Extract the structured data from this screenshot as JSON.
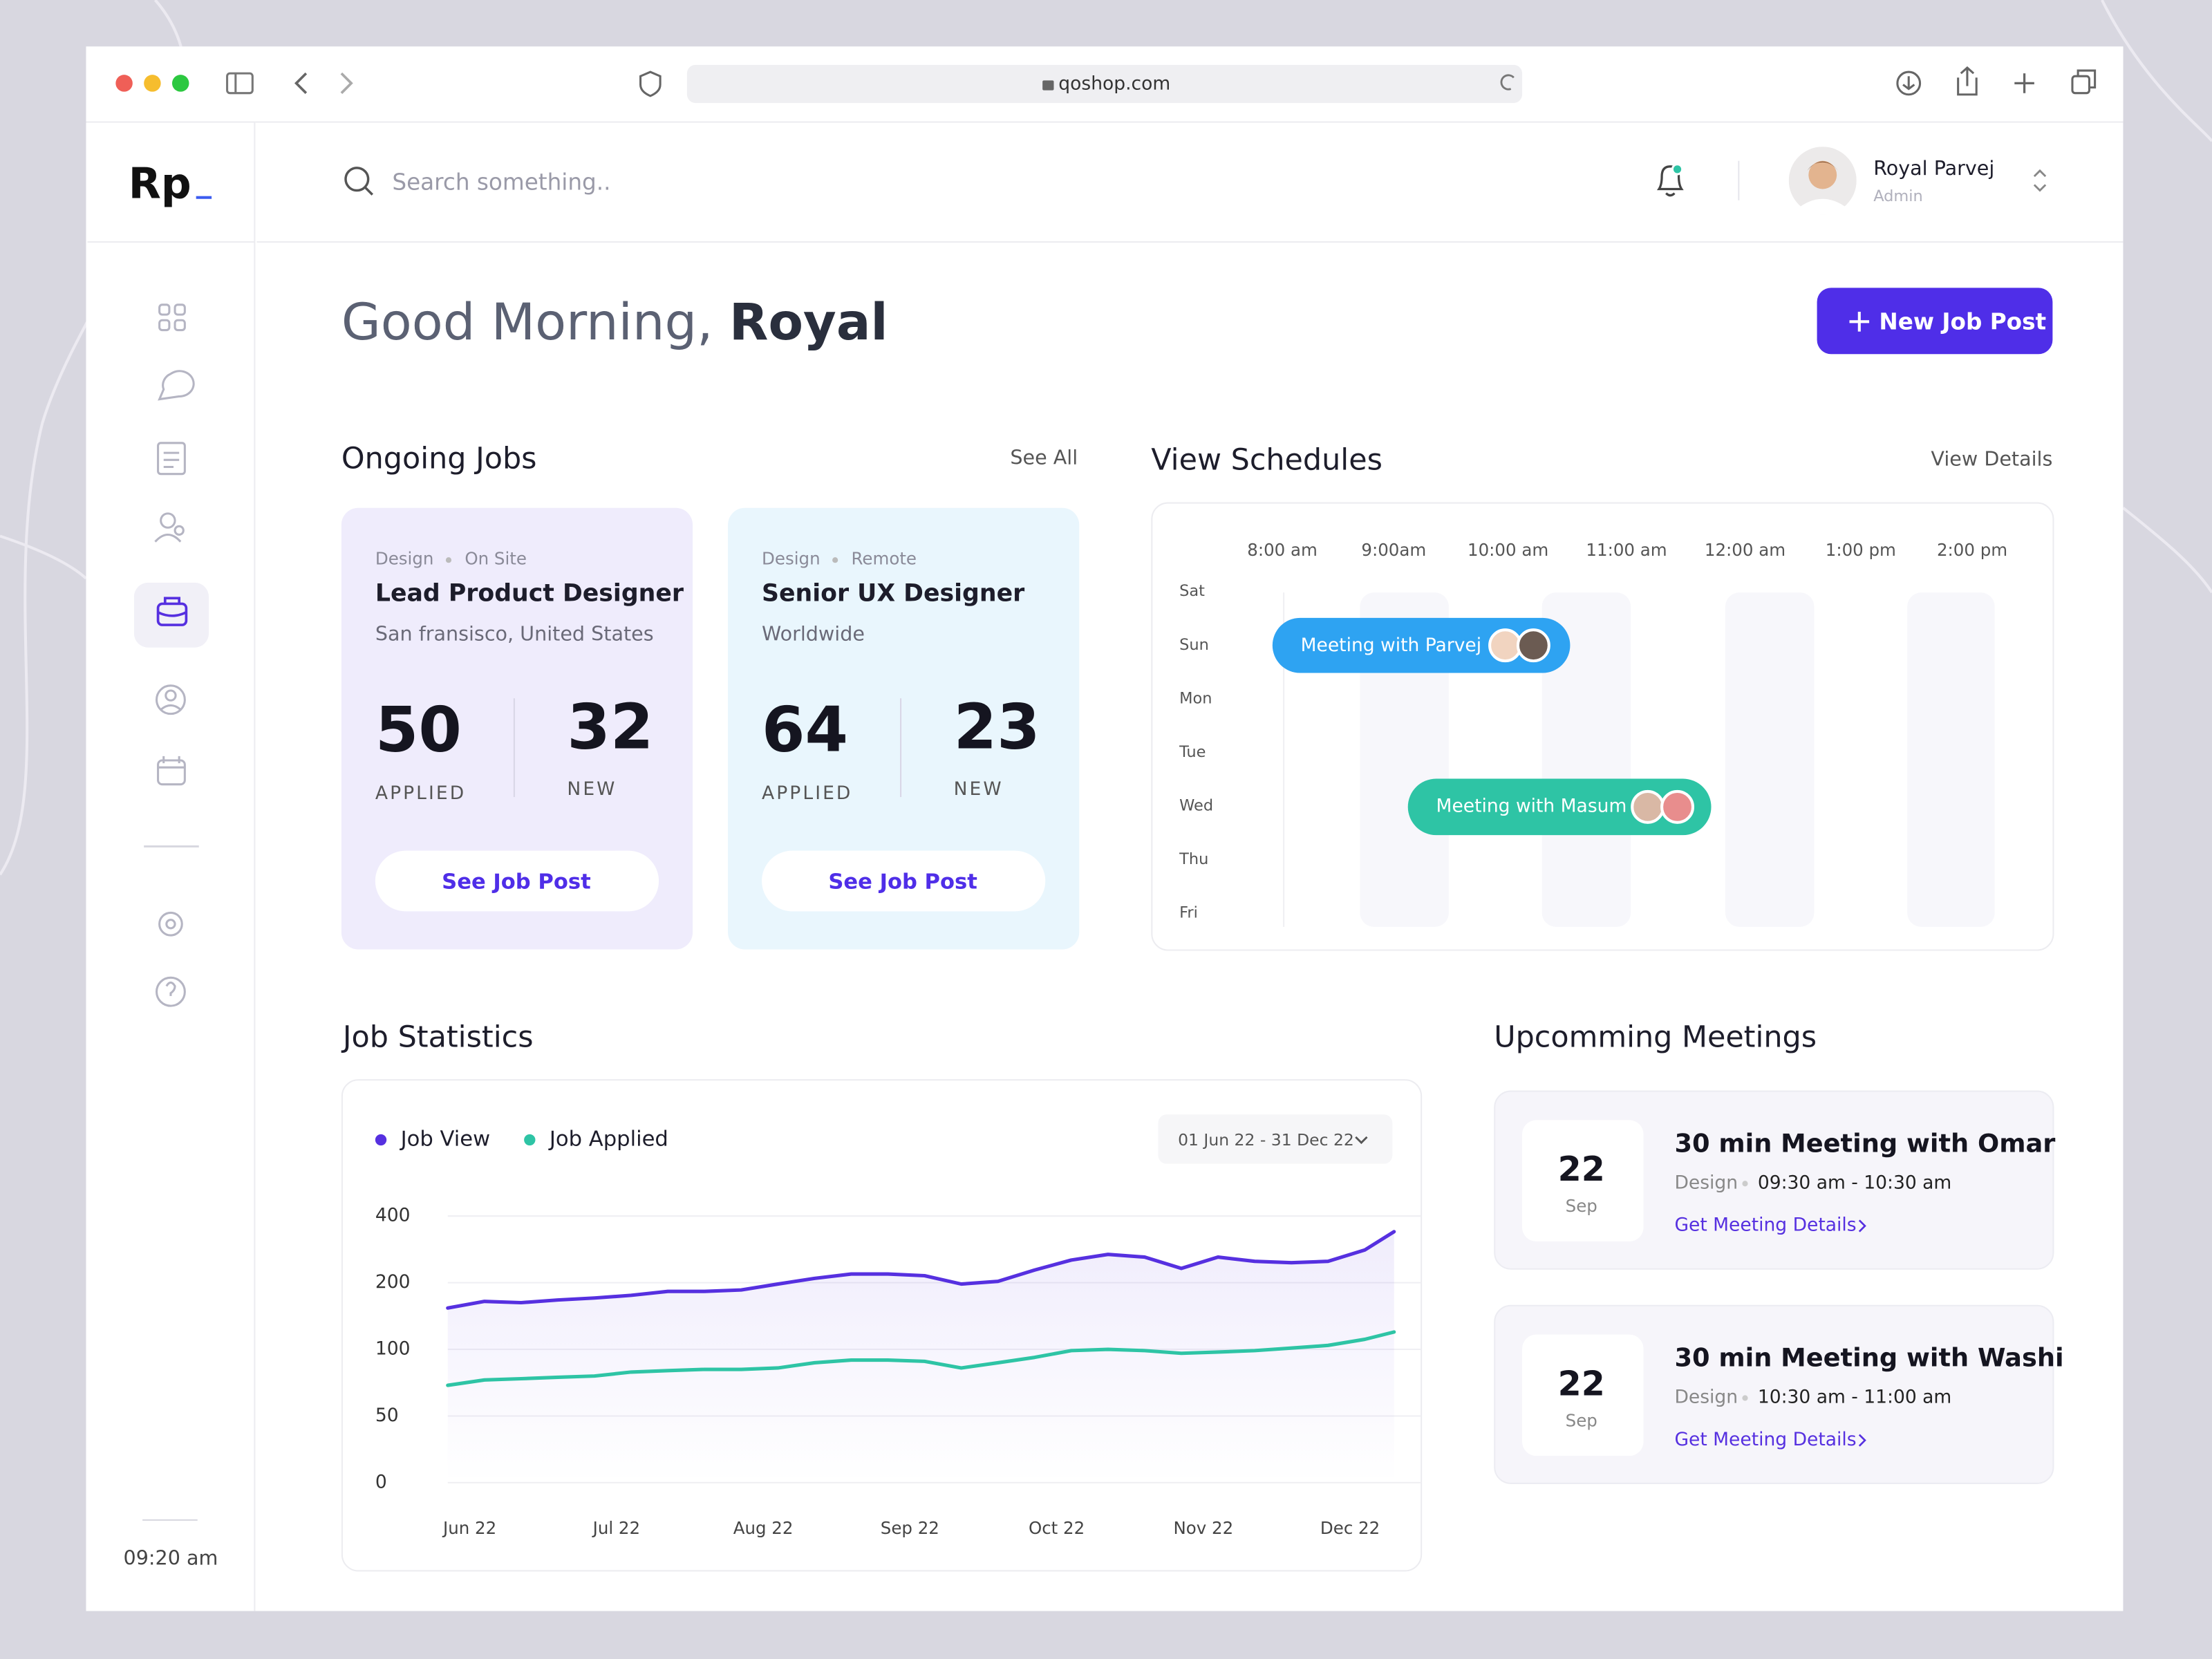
{
  "browser": {
    "url": "qoshop.com"
  },
  "logo": "Rp",
  "search_placeholder": "Search something..",
  "user": {
    "name": "Royal Parvej",
    "role": "Admin"
  },
  "greeting": {
    "text": "Good Morning,",
    "name": "Royal"
  },
  "new_job_button": "New Job Post",
  "ongoing_jobs": {
    "title": "Ongoing Jobs",
    "see_all": "See All",
    "jobs": [
      {
        "category": "Design",
        "mode": "On Site",
        "title": "Lead Product Designer",
        "location": "San fransisco, United States",
        "applied": 50,
        "applied_label": "APPLIED",
        "new": 32,
        "new_label": "NEW",
        "button": "See Job Post"
      },
      {
        "category": "Design",
        "mode": "Remote",
        "title": "Senior UX Designer",
        "location": "Worldwide",
        "applied": 64,
        "applied_label": "APPLIED",
        "new": 23,
        "new_label": "NEW",
        "button": "See Job Post"
      }
    ]
  },
  "schedule": {
    "title": "View Schedules",
    "link": "View Details",
    "times": [
      "8:00 am",
      "9:00am",
      "10:00 am",
      "11:00 am",
      "12:00 am",
      "1:00 pm",
      "2:00 pm"
    ],
    "days": [
      "Sat",
      "Sun",
      "Mon",
      "Tue",
      "Wed",
      "Thu",
      "Fri"
    ],
    "meetings": [
      {
        "label": "Meeting with Parvej"
      },
      {
        "label": "Meeting with Masum"
      }
    ]
  },
  "statistics_range": "01 Jun 22 - 31 Dec 22",
  "chart_data": {
    "type": "line",
    "title": "Job Statistics",
    "x": [
      -0.15,
      0.1,
      0.35,
      0.6,
      0.85,
      1.1,
      1.35,
      1.6,
      1.85,
      2.1,
      2.35,
      2.6,
      2.85,
      3.1,
      3.35,
      3.6,
      3.85,
      4.1,
      4.35,
      4.6,
      4.85,
      5.1,
      5.35,
      5.6,
      5.85,
      6.1,
      6.3
    ],
    "xlim": [
      -0.15,
      6.3
    ],
    "xticks": [
      {
        "value": 0,
        "label": "Jun 22"
      },
      {
        "value": 1,
        "label": "Jul 22"
      },
      {
        "value": 2,
        "label": "Aug 22"
      },
      {
        "value": 3,
        "label": "Sep 22"
      },
      {
        "value": 4,
        "label": "Oct 22"
      },
      {
        "value": 5,
        "label": "Nov 22"
      },
      {
        "value": 6,
        "label": "Dec 22"
      }
    ],
    "ylim": [
      0,
      400
    ],
    "yticks": [
      0,
      50,
      100,
      200,
      400
    ],
    "grid": true,
    "legend": "top-left",
    "series": [
      {
        "name": "Job View",
        "color": "#5630e0",
        "values": [
          162,
          172,
          170,
          174,
          177,
          181,
          187,
          187,
          189,
          198,
          213,
          226,
          226,
          221,
          198,
          204,
          238,
          268,
          285,
          277,
          243,
          277,
          264,
          260,
          264,
          298,
          353
        ]
      },
      {
        "name": "Job Applied",
        "color": "#2ec4a5",
        "values": [
          73,
          77,
          78,
          79,
          80,
          83,
          84,
          85,
          85,
          86,
          90,
          92,
          92,
          91,
          86,
          90,
          94,
          99,
          100,
          99,
          97,
          98,
          99,
          102,
          106,
          115,
          126
        ]
      }
    ]
  },
  "upcoming_meetings": {
    "title": "Upcomming Meetings",
    "items": [
      {
        "day": 22,
        "month": "Sep",
        "title": "30 min Meeting with Omar",
        "category": "Design",
        "time": "09:30 am - 10:30 am",
        "link": "Get Meeting Details"
      },
      {
        "day": 22,
        "month": "Sep",
        "title": "30 min Meeting with Washi",
        "category": "Design",
        "time": "10:30 am - 11:00 am",
        "link": "Get Meeting Details"
      }
    ]
  },
  "sidebar": {
    "time": "09:20 am"
  }
}
